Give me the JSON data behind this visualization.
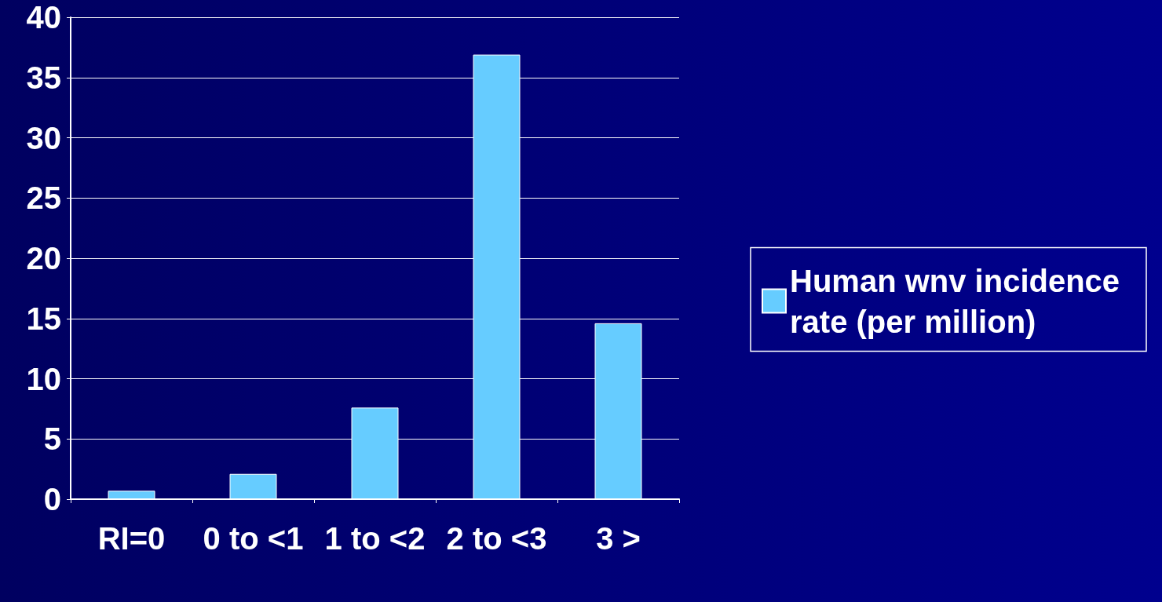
{
  "chart_data": {
    "type": "bar",
    "categories": [
      "RI=0",
      "0 to <1",
      "1 to <2",
      "2 to <3",
      "3 >"
    ],
    "series": [
      {
        "name": "Human wnv incidence rate (per million)",
        "color": "#66ccff",
        "values": [
          0.7,
          2.1,
          7.6,
          36.9,
          14.6
        ]
      }
    ],
    "ylim": [
      0,
      40
    ],
    "yticks": [
      0,
      5,
      10,
      15,
      20,
      25,
      30,
      35,
      40
    ],
    "grid": "y",
    "legend": "right"
  }
}
